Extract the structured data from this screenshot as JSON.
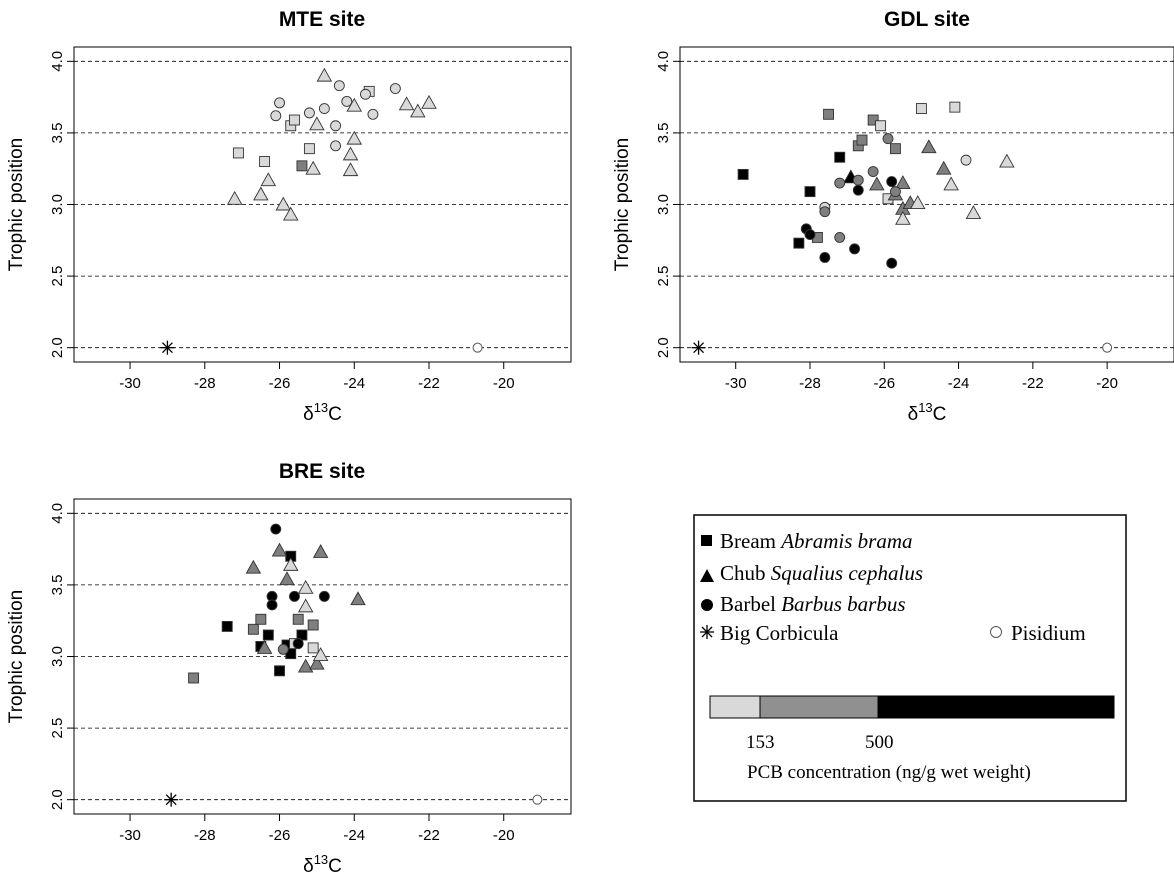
{
  "chart_data": [
    {
      "type": "scatter",
      "title": "MTE site",
      "xlabel": "δ13C",
      "ylabel": "Trophic position",
      "xlim": [
        -31.5,
        -18.2
      ],
      "ylim": [
        1.9,
        4.1
      ],
      "xticks": [
        -30,
        -28,
        -26,
        -24,
        -22,
        -20
      ],
      "yticks": [
        2.0,
        2.5,
        3.0,
        3.5,
        4.0
      ],
      "hlines": [
        2.0,
        2.5,
        3.0,
        3.5,
        4.0
      ],
      "points": [
        {
          "x": -29.0,
          "y": 2.0,
          "species": "corbicula",
          "level": "none"
        },
        {
          "x": -20.7,
          "y": 2.0,
          "species": "pisidium",
          "level": "none"
        },
        {
          "x": -27.2,
          "y": 3.04,
          "species": "chub",
          "level": "low"
        },
        {
          "x": -26.5,
          "y": 3.07,
          "species": "chub",
          "level": "low"
        },
        {
          "x": -26.3,
          "y": 3.17,
          "species": "chub",
          "level": "low"
        },
        {
          "x": -25.9,
          "y": 3.0,
          "species": "chub",
          "level": "low"
        },
        {
          "x": -25.7,
          "y": 2.93,
          "species": "chub",
          "level": "low"
        },
        {
          "x": -25.1,
          "y": 3.25,
          "species": "chub",
          "level": "low"
        },
        {
          "x": -25.0,
          "y": 3.56,
          "species": "chub",
          "level": "low"
        },
        {
          "x": -24.8,
          "y": 3.9,
          "species": "chub",
          "level": "low"
        },
        {
          "x": -24.1,
          "y": 3.24,
          "species": "chub",
          "level": "low"
        },
        {
          "x": -24.1,
          "y": 3.35,
          "species": "chub",
          "level": "low"
        },
        {
          "x": -24.0,
          "y": 3.46,
          "species": "chub",
          "level": "low"
        },
        {
          "x": -24.0,
          "y": 3.69,
          "species": "chub",
          "level": "low"
        },
        {
          "x": -22.6,
          "y": 3.7,
          "species": "chub",
          "level": "low"
        },
        {
          "x": -22.3,
          "y": 3.65,
          "species": "chub",
          "level": "low"
        },
        {
          "x": -22.0,
          "y": 3.71,
          "species": "chub",
          "level": "low"
        },
        {
          "x": -27.1,
          "y": 3.36,
          "species": "bream",
          "level": "low"
        },
        {
          "x": -26.4,
          "y": 3.3,
          "species": "bream",
          "level": "low"
        },
        {
          "x": -25.7,
          "y": 3.55,
          "species": "bream",
          "level": "low"
        },
        {
          "x": -25.6,
          "y": 3.59,
          "species": "bream",
          "level": "low"
        },
        {
          "x": -25.2,
          "y": 3.39,
          "species": "bream",
          "level": "low"
        },
        {
          "x": -25.4,
          "y": 3.27,
          "species": "bream",
          "level": "mid"
        },
        {
          "x": -23.6,
          "y": 3.79,
          "species": "bream",
          "level": "low"
        },
        {
          "x": -26.1,
          "y": 3.62,
          "species": "barbel",
          "level": "low"
        },
        {
          "x": -26.0,
          "y": 3.71,
          "species": "barbel",
          "level": "low"
        },
        {
          "x": -25.2,
          "y": 3.64,
          "species": "barbel",
          "level": "low"
        },
        {
          "x": -24.8,
          "y": 3.67,
          "species": "barbel",
          "level": "low"
        },
        {
          "x": -24.5,
          "y": 3.55,
          "species": "barbel",
          "level": "low"
        },
        {
          "x": -24.5,
          "y": 3.41,
          "species": "barbel",
          "level": "low"
        },
        {
          "x": -24.4,
          "y": 3.83,
          "species": "barbel",
          "level": "low"
        },
        {
          "x": -24.2,
          "y": 3.72,
          "species": "barbel",
          "level": "low"
        },
        {
          "x": -23.7,
          "y": 3.77,
          "species": "barbel",
          "level": "low"
        },
        {
          "x": -23.5,
          "y": 3.63,
          "species": "barbel",
          "level": "low"
        },
        {
          "x": -22.9,
          "y": 3.81,
          "species": "barbel",
          "level": "low"
        }
      ]
    },
    {
      "type": "scatter",
      "title": "GDL site",
      "xlabel": "δ13C",
      "ylabel": "Trophic position",
      "xlim": [
        -31.5,
        -18.2
      ],
      "ylim": [
        1.9,
        4.1
      ],
      "xticks": [
        -30,
        -28,
        -26,
        -24,
        -22,
        -20
      ],
      "yticks": [
        2.0,
        2.5,
        3.0,
        3.5,
        4.0
      ],
      "hlines": [
        2.0,
        2.5,
        3.0,
        3.5,
        4.0
      ],
      "points": [
        {
          "x": -31.0,
          "y": 2.0,
          "species": "corbicula",
          "level": "none"
        },
        {
          "x": -20.0,
          "y": 2.0,
          "species": "pisidium",
          "level": "none"
        },
        {
          "x": -29.8,
          "y": 3.21,
          "species": "bream",
          "level": "high"
        },
        {
          "x": -28.3,
          "y": 2.73,
          "species": "bream",
          "level": "high"
        },
        {
          "x": -28.0,
          "y": 3.09,
          "species": "bream",
          "level": "high"
        },
        {
          "x": -27.8,
          "y": 2.77,
          "species": "bream",
          "level": "mid"
        },
        {
          "x": -27.5,
          "y": 3.63,
          "species": "bream",
          "level": "mid"
        },
        {
          "x": -27.2,
          "y": 3.33,
          "species": "bream",
          "level": "high"
        },
        {
          "x": -26.7,
          "y": 3.41,
          "species": "bream",
          "level": "mid"
        },
        {
          "x": -26.6,
          "y": 3.45,
          "species": "bream",
          "level": "mid"
        },
        {
          "x": -26.3,
          "y": 3.59,
          "species": "bream",
          "level": "mid"
        },
        {
          "x": -26.1,
          "y": 3.55,
          "species": "bream",
          "level": "low"
        },
        {
          "x": -25.9,
          "y": 3.04,
          "species": "bream",
          "level": "low"
        },
        {
          "x": -25.7,
          "y": 3.39,
          "species": "bream",
          "level": "mid"
        },
        {
          "x": -25.0,
          "y": 3.67,
          "species": "bream",
          "level": "low"
        },
        {
          "x": -24.1,
          "y": 3.68,
          "species": "bream",
          "level": "low"
        },
        {
          "x": -26.9,
          "y": 3.19,
          "species": "chub",
          "level": "high"
        },
        {
          "x": -26.2,
          "y": 3.14,
          "species": "chub",
          "level": "mid"
        },
        {
          "x": -25.7,
          "y": 3.07,
          "species": "chub",
          "level": "mid"
        },
        {
          "x": -25.5,
          "y": 3.15,
          "species": "chub",
          "level": "mid"
        },
        {
          "x": -25.5,
          "y": 2.97,
          "species": "chub",
          "level": "mid"
        },
        {
          "x": -25.3,
          "y": 3.01,
          "species": "chub",
          "level": "mid"
        },
        {
          "x": -25.5,
          "y": 2.9,
          "species": "chub",
          "level": "low"
        },
        {
          "x": -25.1,
          "y": 3.01,
          "species": "chub",
          "level": "low"
        },
        {
          "x": -24.8,
          "y": 3.4,
          "species": "chub",
          "level": "mid"
        },
        {
          "x": -24.4,
          "y": 3.25,
          "species": "chub",
          "level": "mid"
        },
        {
          "x": -24.2,
          "y": 3.14,
          "species": "chub",
          "level": "low"
        },
        {
          "x": -23.6,
          "y": 2.94,
          "species": "chub",
          "level": "low"
        },
        {
          "x": -22.7,
          "y": 3.3,
          "species": "chub",
          "level": "low"
        },
        {
          "x": -28.1,
          "y": 2.83,
          "species": "barbel",
          "level": "high"
        },
        {
          "x": -28.0,
          "y": 2.79,
          "species": "barbel",
          "level": "high"
        },
        {
          "x": -27.6,
          "y": 2.98,
          "species": "barbel",
          "level": "low"
        },
        {
          "x": -27.6,
          "y": 2.95,
          "species": "barbel",
          "level": "mid"
        },
        {
          "x": -27.6,
          "y": 2.63,
          "species": "barbel",
          "level": "high"
        },
        {
          "x": -27.2,
          "y": 2.77,
          "species": "barbel",
          "level": "mid"
        },
        {
          "x": -27.2,
          "y": 3.15,
          "species": "barbel",
          "level": "mid"
        },
        {
          "x": -26.8,
          "y": 2.69,
          "species": "barbel",
          "level": "high"
        },
        {
          "x": -26.7,
          "y": 3.17,
          "species": "barbel",
          "level": "mid"
        },
        {
          "x": -26.7,
          "y": 3.1,
          "species": "barbel",
          "level": "high"
        },
        {
          "x": -26.3,
          "y": 3.23,
          "species": "barbel",
          "level": "mid"
        },
        {
          "x": -25.9,
          "y": 3.46,
          "species": "barbel",
          "level": "mid"
        },
        {
          "x": -25.8,
          "y": 3.16,
          "species": "barbel",
          "level": "high"
        },
        {
          "x": -25.8,
          "y": 2.59,
          "species": "barbel",
          "level": "high"
        },
        {
          "x": -25.7,
          "y": 3.09,
          "species": "barbel",
          "level": "mid"
        },
        {
          "x": -23.8,
          "y": 3.31,
          "species": "barbel",
          "level": "low"
        }
      ]
    },
    {
      "type": "scatter",
      "title": "BRE site",
      "xlabel": "δ13C",
      "ylabel": "Trophic position",
      "xlim": [
        -31.5,
        -18.2
      ],
      "ylim": [
        1.9,
        4.1
      ],
      "xticks": [
        -30,
        -28,
        -26,
        -24,
        -22,
        -20
      ],
      "yticks": [
        2.0,
        2.5,
        3.0,
        3.5,
        4.0
      ],
      "hlines": [
        2.0,
        2.5,
        3.0,
        3.5,
        4.0
      ],
      "points": [
        {
          "x": -28.9,
          "y": 2.0,
          "species": "corbicula",
          "level": "none"
        },
        {
          "x": -19.1,
          "y": 2.0,
          "species": "pisidium",
          "level": "none"
        },
        {
          "x": -28.3,
          "y": 2.85,
          "species": "bream",
          "level": "mid"
        },
        {
          "x": -27.4,
          "y": 3.21,
          "species": "bream",
          "level": "high"
        },
        {
          "x": -26.7,
          "y": 3.19,
          "species": "bream",
          "level": "mid"
        },
        {
          "x": -26.5,
          "y": 3.26,
          "species": "bream",
          "level": "mid"
        },
        {
          "x": -26.5,
          "y": 3.07,
          "species": "bream",
          "level": "high"
        },
        {
          "x": -26.3,
          "y": 3.15,
          "species": "bream",
          "level": "high"
        },
        {
          "x": -26.0,
          "y": 2.9,
          "species": "bream",
          "level": "high"
        },
        {
          "x": -25.8,
          "y": 3.08,
          "species": "bream",
          "level": "high"
        },
        {
          "x": -25.7,
          "y": 3.02,
          "species": "bream",
          "level": "high"
        },
        {
          "x": -25.7,
          "y": 3.7,
          "species": "bream",
          "level": "high"
        },
        {
          "x": -25.5,
          "y": 3.26,
          "species": "bream",
          "level": "mid"
        },
        {
          "x": -25.4,
          "y": 3.15,
          "species": "bream",
          "level": "high"
        },
        {
          "x": -25.1,
          "y": 3.22,
          "species": "bream",
          "level": "mid"
        },
        {
          "x": -25.6,
          "y": 3.09,
          "species": "bream",
          "level": "low"
        },
        {
          "x": -25.1,
          "y": 3.06,
          "species": "bream",
          "level": "low"
        },
        {
          "x": -26.7,
          "y": 3.62,
          "species": "chub",
          "level": "mid"
        },
        {
          "x": -26.4,
          "y": 3.06,
          "species": "chub",
          "level": "mid"
        },
        {
          "x": -26.0,
          "y": 3.74,
          "species": "chub",
          "level": "mid"
        },
        {
          "x": -25.8,
          "y": 3.54,
          "species": "chub",
          "level": "mid"
        },
        {
          "x": -25.7,
          "y": 3.64,
          "species": "chub",
          "level": "low"
        },
        {
          "x": -25.3,
          "y": 3.48,
          "species": "chub",
          "level": "low"
        },
        {
          "x": -25.3,
          "y": 3.35,
          "species": "chub",
          "level": "low"
        },
        {
          "x": -25.3,
          "y": 2.93,
          "species": "chub",
          "level": "mid"
        },
        {
          "x": -25.0,
          "y": 2.95,
          "species": "chub",
          "level": "mid"
        },
        {
          "x": -24.9,
          "y": 3.01,
          "species": "chub",
          "level": "low"
        },
        {
          "x": -24.9,
          "y": 3.73,
          "species": "chub",
          "level": "mid"
        },
        {
          "x": -23.9,
          "y": 3.4,
          "species": "chub",
          "level": "mid"
        },
        {
          "x": -26.1,
          "y": 3.89,
          "species": "barbel",
          "level": "high"
        },
        {
          "x": -26.2,
          "y": 3.42,
          "species": "barbel",
          "level": "high"
        },
        {
          "x": -26.2,
          "y": 3.36,
          "species": "barbel",
          "level": "high"
        },
        {
          "x": -25.9,
          "y": 3.05,
          "species": "barbel",
          "level": "mid"
        },
        {
          "x": -25.6,
          "y": 3.42,
          "species": "barbel",
          "level": "high"
        },
        {
          "x": -25.5,
          "y": 3.09,
          "species": "barbel",
          "level": "high"
        },
        {
          "x": -24.8,
          "y": 3.42,
          "species": "barbel",
          "level": "high"
        }
      ]
    }
  ],
  "legend": {
    "entries": [
      {
        "name": "bream",
        "text": "Bream ",
        "italic": "Abramis brama"
      },
      {
        "name": "chub",
        "text": "Chub ",
        "italic": "Squalius cephalus"
      },
      {
        "name": "barbel",
        "text": "Barbel ",
        "italic": "Barbus barbus"
      }
    ],
    "corbicula": "Big Corbicula",
    "pisidium": "Pisidium",
    "scale_ticks": [
      "153",
      "500"
    ],
    "scale_label": "PCB concentration (ng/g wet weight)",
    "scale_colors": [
      "#d9d9d9",
      "#909090",
      "#000000"
    ]
  },
  "colors": {
    "low": "#d9d9d9",
    "mid": "#7f7f7f",
    "high": "#000000",
    "pisidium_fill": "#ffffff"
  }
}
